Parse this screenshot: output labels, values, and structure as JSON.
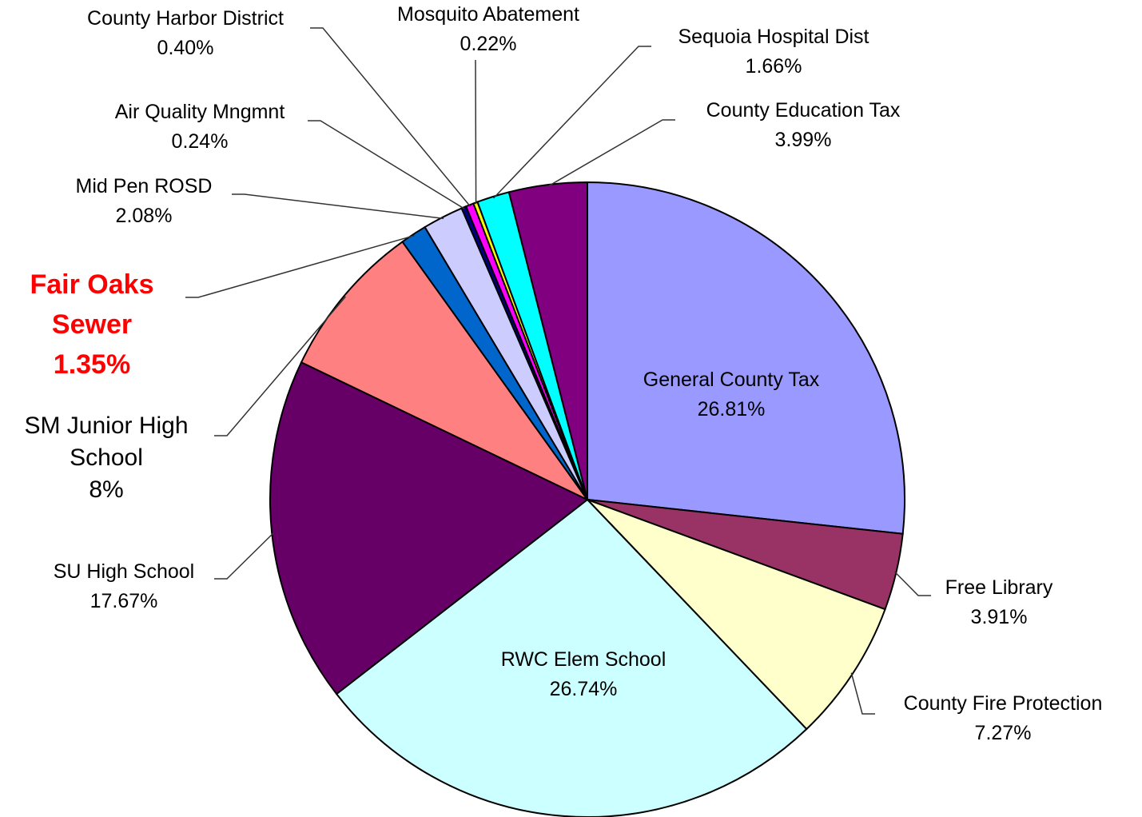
{
  "chart_data": {
    "type": "pie",
    "categories": [
      "General County Tax",
      "Free Library",
      "County Fire Protection",
      "RWC Elem School",
      "SU High School",
      "SM Junior High School",
      "Fair Oaks Sewer",
      "Mid Pen ROSD",
      "Air Quality Mngmnt",
      "County Harbor District",
      "Mosquito Abatement",
      "Sequoia Hospital Dist",
      "County Education Tax"
    ],
    "values": [
      26.81,
      3.91,
      7.27,
      26.74,
      17.67,
      8,
      1.35,
      2.08,
      0.24,
      0.4,
      0.22,
      1.66,
      3.99
    ],
    "value_labels": [
      "26.81%",
      "3.91%",
      "7.27%",
      "26.74%",
      "17.67%",
      "8%",
      "1.35%",
      "2.08%",
      "0.24%",
      "0.40%",
      "0.22%",
      "1.66%",
      "3.99%"
    ],
    "colors": [
      "#9999ff",
      "#993366",
      "#ffffcc",
      "#ccffff",
      "#660066",
      "#ff8080",
      "#0066cc",
      "#ccccff",
      "#000080",
      "#ff00ff",
      "#ffff00",
      "#00ffff",
      "#800080"
    ]
  }
}
